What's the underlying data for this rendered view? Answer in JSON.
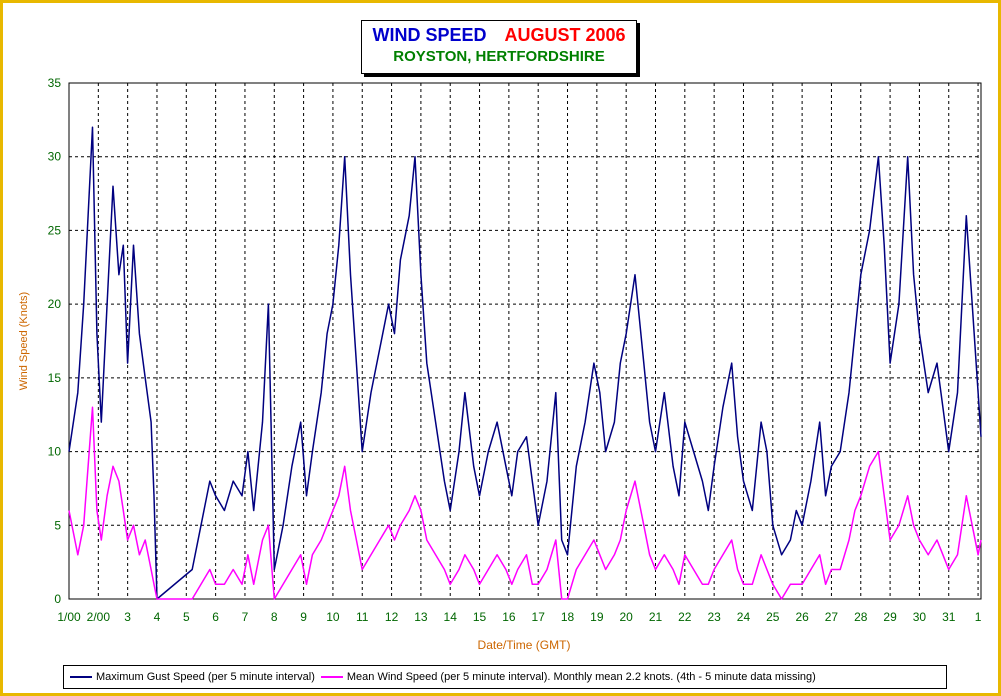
{
  "title": {
    "main": "WIND SPEED",
    "date": "AUGUST 2006",
    "location": "ROYSTON, HERTFORDSHIRE"
  },
  "colors": {
    "frame": "#e8b800",
    "gust": "#000080",
    "mean": "#ff00ff",
    "axis_text": "#006600",
    "axis_title": "#cc6600",
    "grid": "#000000"
  },
  "legend": {
    "gust": "Maximum Gust Speed (per 5 minute interval)",
    "mean": "Mean Wind Speed (per 5 minute interval). Monthly mean 2.2 knots. (4th - 5 minute data missing)"
  },
  "chart_data": {
    "type": "line",
    "title": "WIND SPEED AUGUST 2006",
    "subtitle": "ROYSTON, HERTFORDSHIRE",
    "xlabel": "Date/Time (GMT)",
    "ylabel": "Wind Speed (Knots)",
    "ylim": [
      0,
      35
    ],
    "xlim": [
      1,
      32.1
    ],
    "yticks": [
      0,
      5,
      10,
      15,
      20,
      25,
      30,
      35
    ],
    "xtick_labels": [
      "1/00",
      "2/00",
      "3",
      "4",
      "5",
      "6",
      "7",
      "8",
      "9",
      "10",
      "11",
      "12",
      "13",
      "14",
      "15",
      "16",
      "17",
      "18",
      "19",
      "20",
      "21",
      "22",
      "23",
      "24",
      "25",
      "26",
      "27",
      "28",
      "29",
      "30",
      "31",
      "1"
    ],
    "grid": true,
    "legend_position": "bottom",
    "missing_data": [
      4,
      5.2
    ],
    "series": [
      {
        "name": "Maximum Gust Speed (per 5 minute interval)",
        "color": "#000080",
        "x": [
          1.0,
          1.3,
          1.5,
          1.65,
          1.8,
          1.95,
          2.1,
          2.3,
          2.5,
          2.7,
          2.85,
          3.0,
          3.2,
          3.4,
          3.6,
          3.8,
          3.9,
          4.0,
          5.2,
          5.5,
          5.8,
          6.0,
          6.3,
          6.6,
          6.9,
          7.1,
          7.3,
          7.6,
          7.8,
          8.0,
          8.3,
          8.6,
          8.9,
          9.1,
          9.3,
          9.6,
          9.8,
          10.0,
          10.2,
          10.4,
          10.6,
          10.8,
          11.0,
          11.3,
          11.6,
          11.9,
          12.1,
          12.3,
          12.6,
          12.8,
          13.0,
          13.2,
          13.5,
          13.8,
          14.0,
          14.3,
          14.5,
          14.8,
          15.0,
          15.3,
          15.6,
          15.9,
          16.1,
          16.3,
          16.6,
          16.8,
          17.0,
          17.3,
          17.6,
          17.8,
          18.0,
          18.3,
          18.6,
          18.9,
          19.1,
          19.3,
          19.6,
          19.8,
          20.0,
          20.3,
          20.6,
          20.8,
          21.0,
          21.3,
          21.6,
          21.8,
          22.0,
          22.3,
          22.6,
          22.8,
          23.0,
          23.3,
          23.6,
          23.8,
          24.0,
          24.3,
          24.6,
          24.8,
          25.0,
          25.3,
          25.6,
          25.8,
          26.0,
          26.3,
          26.6,
          26.8,
          27.0,
          27.3,
          27.6,
          27.8,
          28.0,
          28.3,
          28.6,
          28.8,
          29.0,
          29.3,
          29.6,
          29.8,
          30.0,
          30.3,
          30.6,
          30.8,
          31.0,
          31.3,
          31.6,
          31.8,
          32.0,
          32.1
        ],
        "y": [
          10,
          14,
          20,
          26,
          32,
          18,
          12,
          20,
          28,
          22,
          24,
          16,
          24,
          18,
          15,
          12,
          7,
          0,
          2,
          5,
          8,
          7,
          6,
          8,
          7,
          10,
          6,
          12,
          20,
          2,
          5,
          9,
          12,
          7,
          10,
          14,
          18,
          20,
          24,
          30,
          22,
          16,
          10,
          14,
          17,
          20,
          18,
          23,
          26,
          30,
          22,
          16,
          12,
          8,
          6,
          10,
          14,
          9,
          7,
          10,
          12,
          9,
          7,
          10,
          11,
          8,
          5,
          8,
          14,
          4,
          3,
          9,
          12,
          16,
          14,
          10,
          12,
          16,
          18,
          22,
          16,
          12,
          10,
          14,
          9,
          7,
          12,
          10,
          8,
          6,
          9,
          13,
          16,
          11,
          8,
          6,
          12,
          10,
          5,
          3,
          4,
          6,
          5,
          8,
          12,
          7,
          9,
          10,
          14,
          18,
          22,
          25,
          30,
          24,
          16,
          20,
          30,
          22,
          18,
          14,
          16,
          13,
          10,
          14,
          26,
          20,
          14,
          11
        ],
        "approx_peaks": [
          32,
          30,
          30,
          30,
          30
        ]
      },
      {
        "name": "Mean Wind Speed (per 5 minute interval). Monthly mean 2.2 knots. (4th - 5 minute data missing)",
        "color": "#ff00ff",
        "x": [
          1.0,
          1.3,
          1.5,
          1.65,
          1.8,
          1.95,
          2.1,
          2.3,
          2.5,
          2.7,
          2.85,
          3.0,
          3.2,
          3.4,
          3.6,
          3.8,
          3.9,
          4.0,
          5.2,
          5.5,
          5.8,
          6.0,
          6.3,
          6.6,
          6.9,
          7.1,
          7.3,
          7.6,
          7.8,
          8.0,
          8.3,
          8.6,
          8.9,
          9.1,
          9.3,
          9.6,
          9.8,
          10.0,
          10.2,
          10.4,
          10.6,
          10.8,
          11.0,
          11.3,
          11.6,
          11.9,
          12.1,
          12.3,
          12.6,
          12.8,
          13.0,
          13.2,
          13.5,
          13.8,
          14.0,
          14.3,
          14.5,
          14.8,
          15.0,
          15.3,
          15.6,
          15.9,
          16.1,
          16.3,
          16.6,
          16.8,
          17.0,
          17.3,
          17.6,
          17.8,
          18.0,
          18.3,
          18.6,
          18.9,
          19.1,
          19.3,
          19.6,
          19.8,
          20.0,
          20.3,
          20.6,
          20.8,
          21.0,
          21.3,
          21.6,
          21.8,
          22.0,
          22.3,
          22.6,
          22.8,
          23.0,
          23.3,
          23.6,
          23.8,
          24.0,
          24.3,
          24.6,
          24.8,
          25.0,
          25.3,
          25.6,
          25.8,
          26.0,
          26.3,
          26.6,
          26.8,
          27.0,
          27.3,
          27.6,
          27.8,
          28.0,
          28.3,
          28.6,
          28.8,
          29.0,
          29.3,
          29.6,
          29.8,
          30.0,
          30.3,
          30.6,
          30.8,
          31.0,
          31.3,
          31.6,
          31.8,
          32.0,
          32.1
        ],
        "y": [
          6,
          3,
          5,
          9,
          13,
          6,
          4,
          7,
          9,
          8,
          6,
          4,
          5,
          3,
          4,
          2,
          1,
          0,
          0,
          1,
          2,
          1,
          1,
          2,
          1,
          3,
          1,
          4,
          5,
          0,
          1,
          2,
          3,
          1,
          3,
          4,
          5,
          6,
          7,
          9,
          6,
          4,
          2,
          3,
          4,
          5,
          4,
          5,
          6,
          7,
          6,
          4,
          3,
          2,
          1,
          2,
          3,
          2,
          1,
          2,
          3,
          2,
          1,
          2,
          3,
          1,
          1,
          2,
          4,
          0,
          0,
          2,
          3,
          4,
          3,
          2,
          3,
          4,
          6,
          8,
          5,
          3,
          2,
          3,
          2,
          1,
          3,
          2,
          1,
          1,
          2,
          3,
          4,
          2,
          1,
          1,
          3,
          2,
          1,
          0,
          1,
          1,
          1,
          2,
          3,
          1,
          2,
          2,
          4,
          6,
          7,
          9,
          10,
          7,
          4,
          5,
          7,
          5,
          4,
          3,
          4,
          3,
          2,
          3,
          7,
          5,
          3,
          4
        ]
      }
    ]
  }
}
